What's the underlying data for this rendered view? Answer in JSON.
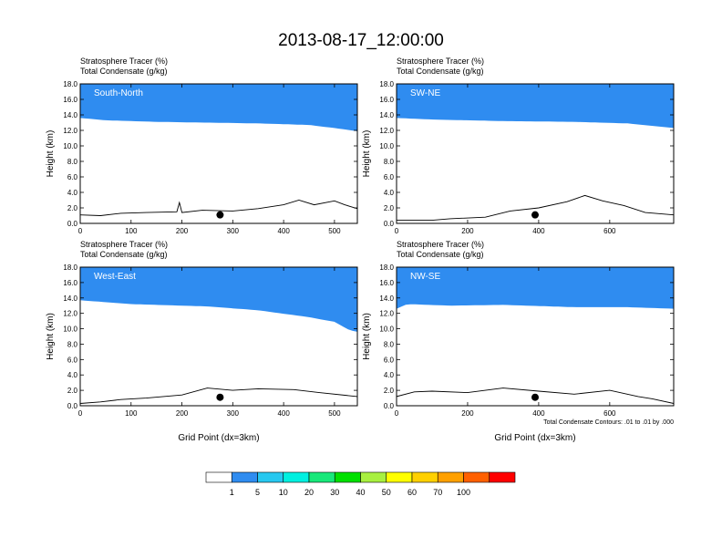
{
  "title": "2013-08-17_12:00:00",
  "var_labels": [
    "Stratosphere Tracer   (%)",
    "Total Condensate   (g/kg)"
  ],
  "ylabel": "Height (km)",
  "xlabel": "Grid Point (dx=3km)",
  "contour_note": "Total Condensate Contours: .01 to .01 by .000",
  "colorbar": {
    "labels": [
      "1",
      "5",
      "10",
      "20",
      "30",
      "40",
      "50",
      "60",
      "70",
      "100"
    ],
    "colors": [
      "#ffffff",
      "#2f8cf0",
      "#27c8f0",
      "#00f0e0",
      "#18e87a",
      "#00e000",
      "#a8f040",
      "#ffff00",
      "#ffd000",
      "#ffa000",
      "#ff6000",
      "#ff0000"
    ]
  },
  "chart_data": [
    {
      "type": "heatmap",
      "panel": "South-North",
      "xlim": [
        0,
        545
      ],
      "ylim": [
        0,
        18
      ],
      "xticks": [
        0,
        100,
        200,
        300,
        400,
        500
      ],
      "yticks": [
        "0.0",
        "2.0",
        "4.0",
        "6.0",
        "8.0",
        "10.0",
        "12.0",
        "14.0",
        "16.0",
        "18.0"
      ],
      "tropopause_km": [
        [
          0,
          13.6
        ],
        [
          50,
          13.3
        ],
        [
          150,
          13.1
        ],
        [
          250,
          13.0
        ],
        [
          350,
          12.9
        ],
        [
          450,
          12.7
        ],
        [
          500,
          12.3
        ],
        [
          545,
          11.9
        ]
      ],
      "terrain_km": [
        [
          0,
          1.1
        ],
        [
          40,
          1.0
        ],
        [
          80,
          1.3
        ],
        [
          130,
          1.4
        ],
        [
          190,
          1.5
        ],
        [
          195,
          2.7
        ],
        [
          200,
          1.4
        ],
        [
          240,
          1.7
        ],
        [
          300,
          1.6
        ],
        [
          350,
          1.9
        ],
        [
          400,
          2.4
        ],
        [
          430,
          3.0
        ],
        [
          460,
          2.4
        ],
        [
          500,
          2.9
        ],
        [
          520,
          2.4
        ],
        [
          545,
          1.9
        ]
      ],
      "marker": [
        275,
        1.1
      ]
    },
    {
      "type": "heatmap",
      "panel": "SW-NE",
      "xlim": [
        0,
        780
      ],
      "ylim": [
        0,
        18
      ],
      "xticks": [
        0,
        200,
        400,
        600
      ],
      "yticks": [
        "0.0",
        "2.0",
        "4.0",
        "6.0",
        "8.0",
        "10.0",
        "12.0",
        "14.0",
        "16.0",
        "18.0"
      ],
      "tropopause_km": [
        [
          0,
          13.6
        ],
        [
          100,
          13.4
        ],
        [
          300,
          13.2
        ],
        [
          500,
          13.1
        ],
        [
          650,
          12.9
        ],
        [
          780,
          12.3
        ]
      ],
      "terrain_km": [
        [
          0,
          0.4
        ],
        [
          100,
          0.4
        ],
        [
          150,
          0.6
        ],
        [
          250,
          0.8
        ],
        [
          320,
          1.6
        ],
        [
          400,
          2.0
        ],
        [
          480,
          2.8
        ],
        [
          530,
          3.6
        ],
        [
          580,
          2.9
        ],
        [
          640,
          2.3
        ],
        [
          700,
          1.4
        ],
        [
          780,
          1.1
        ]
      ],
      "marker": [
        390,
        1.1
      ]
    },
    {
      "type": "heatmap",
      "panel": "West-East",
      "xlim": [
        0,
        545
      ],
      "ylim": [
        0,
        18
      ],
      "xticks": [
        0,
        100,
        200,
        300,
        400,
        500
      ],
      "yticks": [
        "0.0",
        "2.0",
        "4.0",
        "6.0",
        "8.0",
        "10.0",
        "12.0",
        "14.0",
        "16.0",
        "18.0"
      ],
      "tropopause_km": [
        [
          0,
          13.7
        ],
        [
          100,
          13.2
        ],
        [
          250,
          12.9
        ],
        [
          350,
          12.4
        ],
        [
          450,
          11.5
        ],
        [
          500,
          10.9
        ],
        [
          530,
          9.8
        ],
        [
          545,
          9.6
        ]
      ],
      "terrain_km": [
        [
          0,
          0.3
        ],
        [
          40,
          0.5
        ],
        [
          80,
          0.8
        ],
        [
          130,
          1.0
        ],
        [
          200,
          1.4
        ],
        [
          250,
          2.3
        ],
        [
          300,
          2.0
        ],
        [
          350,
          2.2
        ],
        [
          420,
          2.1
        ],
        [
          470,
          1.7
        ],
        [
          545,
          1.2
        ]
      ],
      "marker": [
        275,
        1.1
      ]
    },
    {
      "type": "heatmap",
      "panel": "NW-SE",
      "xlim": [
        0,
        780
      ],
      "ylim": [
        0,
        18
      ],
      "xticks": [
        0,
        200,
        400,
        600
      ],
      "yticks": [
        "0.0",
        "2.0",
        "4.0",
        "6.0",
        "8.0",
        "10.0",
        "12.0",
        "14.0",
        "16.0",
        "18.0"
      ],
      "tropopause_km": [
        [
          0,
          12.6
        ],
        [
          30,
          13.2
        ],
        [
          150,
          13.0
        ],
        [
          300,
          13.1
        ],
        [
          500,
          12.8
        ],
        [
          650,
          12.8
        ],
        [
          780,
          12.6
        ]
      ],
      "terrain_km": [
        [
          0,
          1.2
        ],
        [
          50,
          1.8
        ],
        [
          100,
          1.9
        ],
        [
          200,
          1.7
        ],
        [
          300,
          2.3
        ],
        [
          400,
          1.9
        ],
        [
          500,
          1.5
        ],
        [
          600,
          2.0
        ],
        [
          680,
          1.2
        ],
        [
          720,
          0.9
        ],
        [
          780,
          0.3
        ]
      ],
      "marker": [
        390,
        1.1
      ]
    }
  ]
}
